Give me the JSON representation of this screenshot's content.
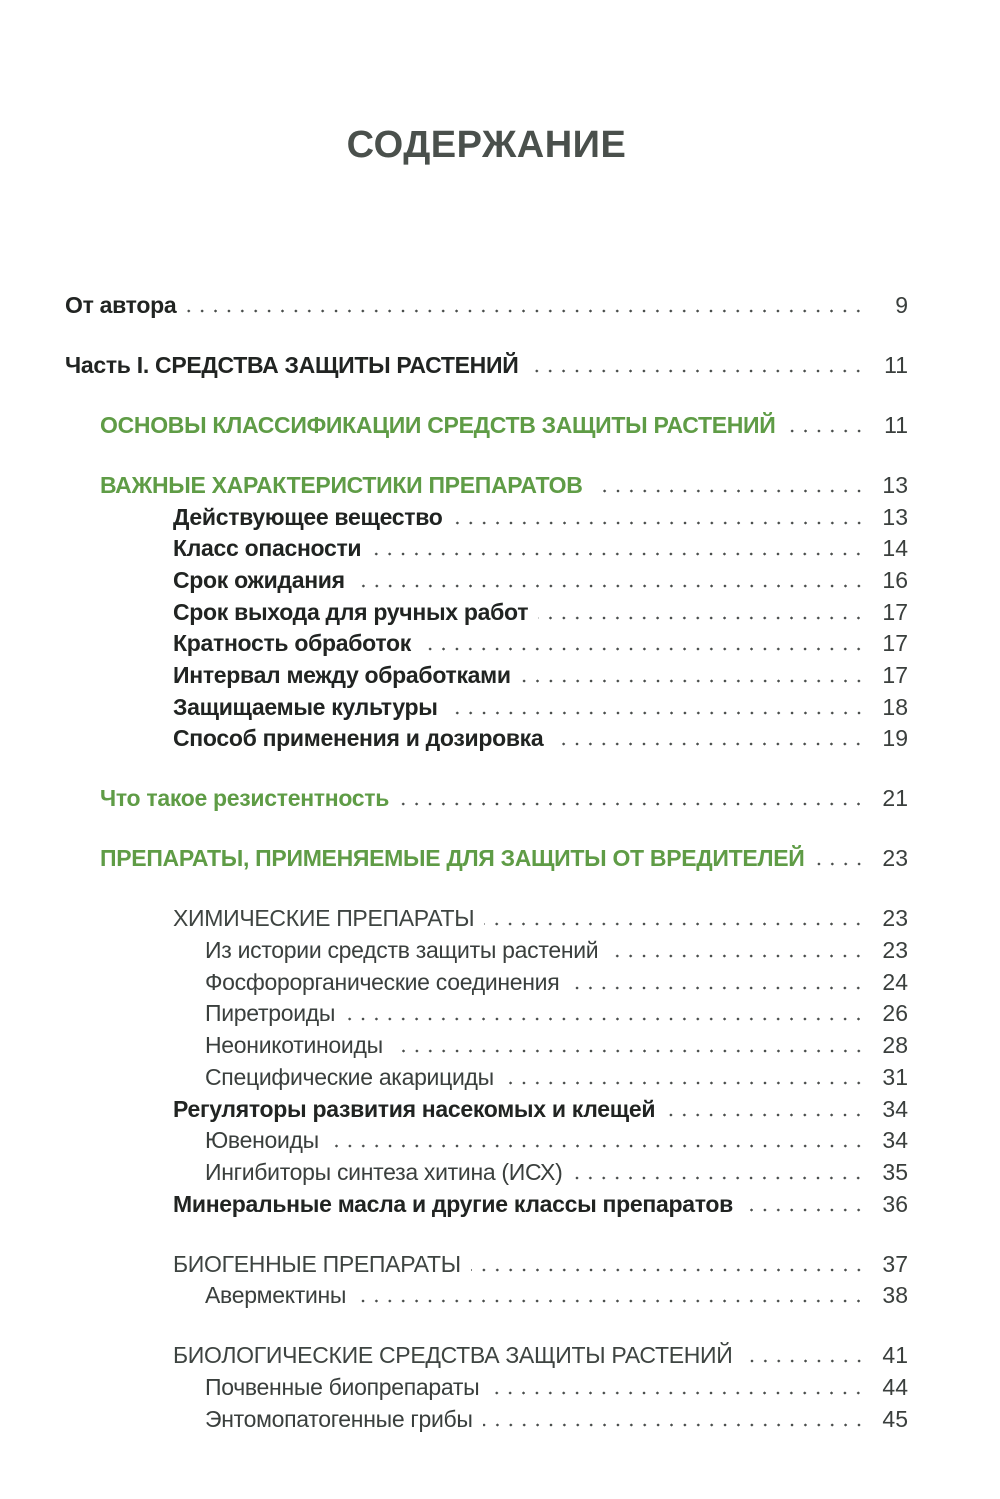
{
  "page": {
    "title": "СОДЕРЖАНИЕ"
  },
  "colors": {
    "background": "#ffffff",
    "dark": "#212422",
    "gray": "#3a3f3d",
    "caps_gray": "#3e4441",
    "green": "#5f9c46",
    "title": "#4a504c",
    "dots": "#4a4e4c"
  },
  "toc": {
    "entries": [
      {
        "label": "От автора",
        "page": "9",
        "level": 0,
        "style": "bold",
        "section_break": false
      },
      {
        "label": "Часть I. СРЕДСТВА ЗАЩИТЫ РАСТЕНИЙ",
        "page": "11",
        "level": 0,
        "style": "bold",
        "section_break": true
      },
      {
        "label": "ОСНОВЫ КЛАССИФИКАЦИИ СРЕДСТВ ЗАЩИТЫ РАСТЕНИЙ",
        "page": "11",
        "level": 1,
        "style": "green",
        "section_break": true
      },
      {
        "label": "ВАЖНЫЕ ХАРАКТЕРИСТИКИ ПРЕПАРАТОВ",
        "page": "13",
        "level": 1,
        "style": "green",
        "section_break": true
      },
      {
        "label": "Действующее вещество",
        "page": "13",
        "level": 2,
        "style": "bold",
        "section_break": false
      },
      {
        "label": "Класс опасности",
        "page": "14",
        "level": 2,
        "style": "bold",
        "section_break": false
      },
      {
        "label": "Срок ожидания",
        "page": "16",
        "level": 2,
        "style": "bold",
        "section_break": false
      },
      {
        "label": "Срок выхода для ручных работ",
        "page": "17",
        "level": 2,
        "style": "bold",
        "section_break": false
      },
      {
        "label": "Кратность обработок",
        "page": "17",
        "level": 2,
        "style": "bold",
        "section_break": false
      },
      {
        "label": "Интервал между обработками",
        "page": "17",
        "level": 2,
        "style": "bold",
        "section_break": false
      },
      {
        "label": "Защищаемые культуры",
        "page": "18",
        "level": 2,
        "style": "bold",
        "section_break": false
      },
      {
        "label": "Способ применения и дозировка",
        "page": "19",
        "level": 2,
        "style": "bold",
        "section_break": false
      },
      {
        "label": "Что такое резистентность",
        "page": "21",
        "level": 1,
        "style": "green",
        "section_break": true
      },
      {
        "label": "ПРЕПАРАТЫ, ПРИМЕНЯЕМЫЕ ДЛЯ ЗАЩИТЫ ОТ ВРЕДИТЕЛЕЙ",
        "page": "23",
        "level": 1,
        "style": "green",
        "section_break": true
      },
      {
        "label": "ХИМИЧЕСКИЕ ПРЕПАРАТЫ",
        "page": "23",
        "level": 2,
        "style": "caps",
        "section_break": true
      },
      {
        "label": "Из истории средств защиты растений",
        "page": "23",
        "level": 3,
        "style": "regular",
        "section_break": false
      },
      {
        "label": "Фосфорорганические соединения",
        "page": "24",
        "level": 3,
        "style": "regular",
        "section_break": false
      },
      {
        "label": "Пиретроиды",
        "page": "26",
        "level": 3,
        "style": "regular",
        "section_break": false
      },
      {
        "label": "Неоникотиноиды",
        "page": "28",
        "level": 3,
        "style": "regular",
        "section_break": false
      },
      {
        "label": "Специфические акарициды",
        "page": "31",
        "level": 3,
        "style": "regular",
        "section_break": false
      },
      {
        "label": "Регуляторы развития насекомых и клещей",
        "page": "34",
        "level": 2,
        "style": "bold",
        "section_break": false
      },
      {
        "label": "Ювеноиды",
        "page": "34",
        "level": 3,
        "style": "regular",
        "section_break": false
      },
      {
        "label": "Ингибиторы синтеза хитина (ИСХ)",
        "page": "35",
        "level": 3,
        "style": "regular",
        "section_break": false
      },
      {
        "label": "Минеральные масла и другие классы препаратов",
        "page": "36",
        "level": 2,
        "style": "bold",
        "section_break": false
      },
      {
        "label": "БИОГЕННЫЕ ПРЕПАРАТЫ",
        "page": "37",
        "level": 2,
        "style": "caps",
        "section_break": true
      },
      {
        "label": "Авермектины",
        "page": "38",
        "level": 3,
        "style": "regular",
        "section_break": false
      },
      {
        "label": "БИОЛОГИЧЕСКИЕ СРЕДСТВА ЗАЩИТЫ РАСТЕНИЙ",
        "page": "41",
        "level": 2,
        "style": "caps",
        "section_break": true
      },
      {
        "label": "Почвенные биопрепараты",
        "page": "44",
        "level": 3,
        "style": "regular",
        "section_break": false
      },
      {
        "label": "Энтомопатогенные грибы",
        "page": "45",
        "level": 3,
        "style": "regular",
        "section_break": false
      }
    ]
  }
}
